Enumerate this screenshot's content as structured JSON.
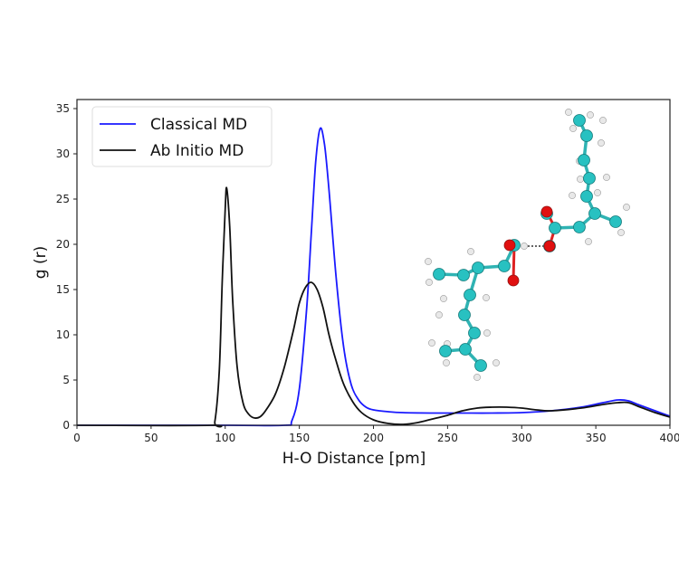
{
  "chart_data": {
    "type": "line",
    "title": "",
    "xlabel": "H-O Distance [pm]",
    "ylabel": "g (r)",
    "xlim": [
      0,
      400
    ],
    "ylim": [
      0,
      36
    ],
    "xticks": [
      0,
      50,
      100,
      150,
      200,
      250,
      300,
      350,
      400
    ],
    "yticks": [
      0,
      5,
      10,
      15,
      20,
      25,
      30,
      35
    ],
    "grid": false,
    "legend_position": "upper left",
    "series": [
      {
        "name": "Classical MD",
        "color": "#1a1aff",
        "x": [
          0,
          100,
          140,
          145,
          150,
          155,
          158,
          161,
          164,
          167,
          170,
          175,
          180,
          185,
          190,
          195,
          200,
          210,
          220,
          240,
          260,
          280,
          300,
          320,
          340,
          355,
          365,
          372,
          380,
          390,
          400
        ],
        "y": [
          0,
          0,
          0,
          0.5,
          4,
          13,
          21,
          29,
          32.8,
          31,
          26,
          16,
          8.5,
          4.5,
          2.8,
          2.0,
          1.7,
          1.5,
          1.4,
          1.35,
          1.35,
          1.35,
          1.4,
          1.6,
          2.0,
          2.5,
          2.8,
          2.7,
          2.2,
          1.6,
          1.0
        ]
      },
      {
        "name": "Ab Initio MD",
        "color": "#111111",
        "x": [
          0,
          90,
          93,
          96,
          98,
          100,
          101,
          103,
          105,
          108,
          112,
          116,
          120,
          124,
          128,
          134,
          140,
          146,
          150,
          154,
          158,
          162,
          166,
          170,
          175,
          180,
          186,
          192,
          200,
          210,
          220,
          230,
          240,
          250,
          260,
          270,
          280,
          290,
          300,
          310,
          320,
          340,
          355,
          365,
          372,
          380,
          390,
          400
        ],
        "y": [
          0,
          0,
          0.4,
          6,
          16,
          24,
          26.2,
          22,
          14,
          6.5,
          2.5,
          1.2,
          0.8,
          1.0,
          1.8,
          3.5,
          6.5,
          10.5,
          13.5,
          15.2,
          15.8,
          15.0,
          13,
          10,
          7,
          4.5,
          2.6,
          1.4,
          0.6,
          0.2,
          0.1,
          0.3,
          0.7,
          1.1,
          1.6,
          1.9,
          2.0,
          2.0,
          1.9,
          1.7,
          1.6,
          1.9,
          2.3,
          2.5,
          2.5,
          2.0,
          1.4,
          0.9
        ]
      }
    ],
    "annotations": [
      {
        "type": "image-inset",
        "description": "Ball-and-stick model of hydrogen-bonded dimer of unsaturated carboxylic acids (cyan carbon, red oxygen, white hydrogen) with dotted H-bond"
      }
    ]
  },
  "legend": {
    "items": [
      {
        "label": "Classical MD",
        "color": "#1a1aff"
      },
      {
        "label": "Ab Initio MD",
        "color": "#111111"
      }
    ]
  },
  "axes": {
    "xlabel": "H-O Distance [pm]",
    "ylabel": "g (r)"
  }
}
